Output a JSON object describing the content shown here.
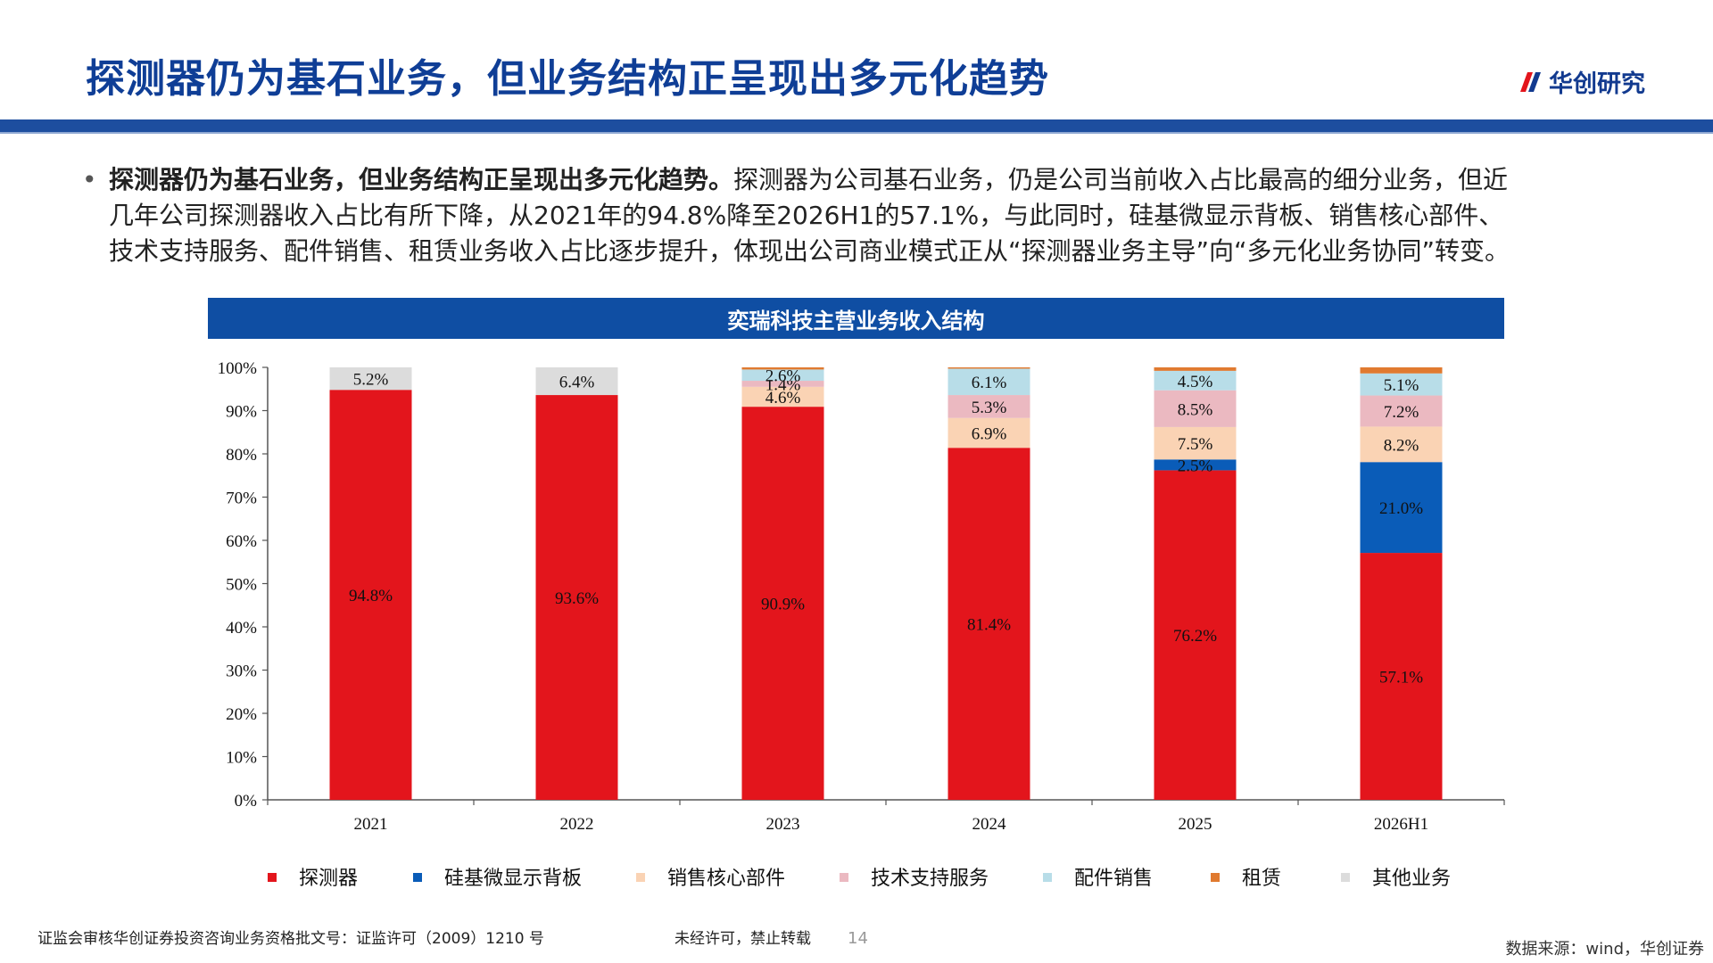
{
  "header": {
    "title": "探测器仍为基石业务，但业务结构正呈现出多元化趋势",
    "logo_text": "华创研究"
  },
  "bullet": {
    "bold": "探测器仍为基石业务，但业务结构正呈现出多元化趋势。",
    "text": "探测器为公司基石业务，仍是公司当前收入占比最高的细分业务，但近几年公司探测器收入占比有所下降，从2021年的94.8%降至2026H1的57.1%，与此同时，硅基微显示背板、销售核心部件、技术支持服务、配件销售、租赁业务收入占比逐步提升，体现出公司商业模式正从“探测器业务主导”向“多元化业务协同”转变。"
  },
  "chart_header": "奕瑞科技主营业务收入结构",
  "chart_data": {
    "type": "bar",
    "stacked": true,
    "categories": [
      "2021",
      "2022",
      "2023",
      "2024",
      "2025",
      "2026H1"
    ],
    "ylim": [
      0,
      100
    ],
    "yticks": [
      "0%",
      "10%",
      "20%",
      "30%",
      "40%",
      "50%",
      "60%",
      "70%",
      "80%",
      "90%",
      "100%"
    ],
    "legend_position": "bottom",
    "series": [
      {
        "name": "探测器",
        "color": "#e3151c",
        "values": [
          94.8,
          93.6,
          90.9,
          81.4,
          76.2,
          57.1
        ],
        "labels": [
          "94.8%",
          "93.6%",
          "90.9%",
          "81.4%",
          "76.2%",
          "57.1%"
        ]
      },
      {
        "name": "硅基微显示背板",
        "color": "#0a5cb8",
        "values": [
          0,
          0,
          0,
          0,
          2.5,
          21.0
        ],
        "labels": [
          "",
          "",
          "",
          "",
          "2.5%",
          "21.0%"
        ]
      },
      {
        "name": "销售核心部件",
        "color": "#fad3b4",
        "values": [
          0,
          0,
          4.6,
          6.9,
          7.5,
          8.2
        ],
        "labels": [
          "",
          "",
          "4.6%",
          "6.9%",
          "7.5%",
          "8.2%"
        ]
      },
      {
        "name": "技术支持服务",
        "color": "#ebb9c1",
        "values": [
          0,
          0,
          1.4,
          5.3,
          8.5,
          7.2
        ],
        "labels": [
          "",
          "",
          "1.4%",
          "5.3%",
          "8.5%",
          "7.2%"
        ]
      },
      {
        "name": "配件销售",
        "color": "#b8dde8",
        "values": [
          0,
          0,
          2.6,
          6.1,
          4.5,
          5.1
        ],
        "labels": [
          "",
          "",
          "2.6%",
          "6.1%",
          "4.5%",
          "5.1%"
        ]
      },
      {
        "name": "租赁",
        "color": "#e07a30",
        "values": [
          0,
          0,
          0.5,
          0.3,
          0.8,
          1.4
        ],
        "labels": [
          "",
          "",
          "",
          "",
          "",
          ""
        ]
      },
      {
        "name": "其他业务",
        "color": "#dcdcdc",
        "values": [
          5.2,
          6.4,
          0,
          0,
          0,
          0
        ],
        "labels": [
          "5.2%",
          "6.4%",
          "",
          "",
          "",
          ""
        ]
      }
    ]
  },
  "footer": {
    "license": "证监会审核华创证券投资咨询业务资格批文号：证监许可（2009）1210 号",
    "notice": "未经许可，禁止转载",
    "page": "14",
    "source": "数据来源：wind，华创证券"
  }
}
